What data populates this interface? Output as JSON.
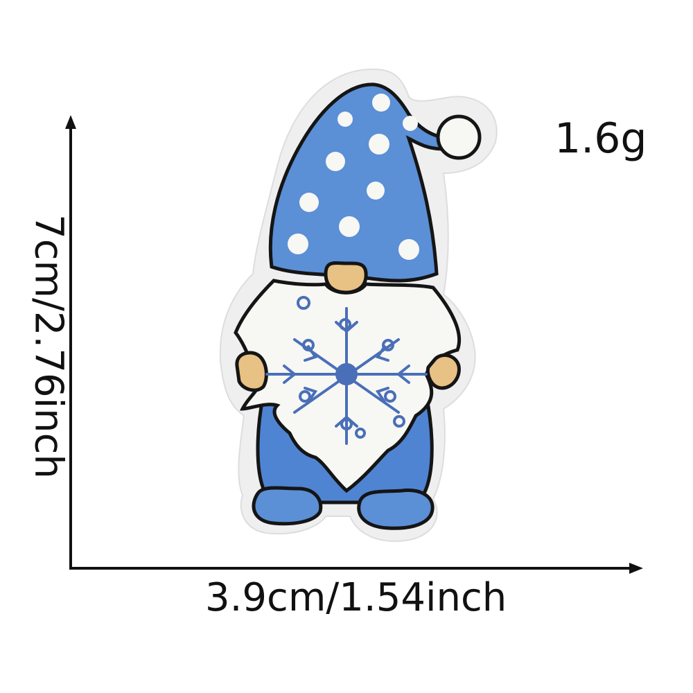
{
  "product": {
    "weight": "1.6g",
    "width": "3.9cm/1.54inch",
    "height": "7cm/2.76inch"
  },
  "colors": {
    "background": "#ffffff",
    "felt_border": "#f1f1f1",
    "outline": "#151515",
    "hat_blue": "#5b8fd6",
    "body_blue": "#4f84d2",
    "beard_white": "#f7f7f4",
    "skin_tan": "#e8c184",
    "snowflake_blue": "#4a6fb8",
    "arrow": "#111111"
  },
  "icons": {
    "patch": "gnome-embroidered-patch-icon",
    "snowflake": "snowflake-icon",
    "vertical_arrow": "arrow-up-icon",
    "horizontal_arrow": "arrow-right-icon"
  }
}
